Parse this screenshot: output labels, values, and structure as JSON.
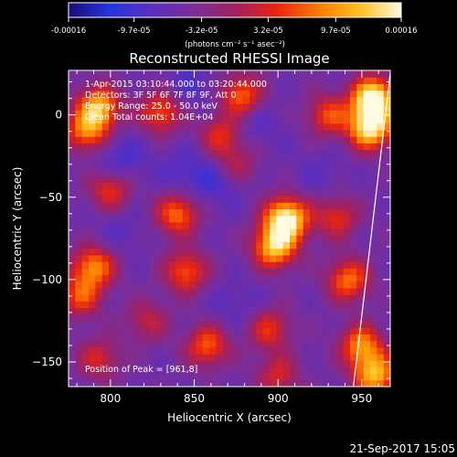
{
  "title": "Reconstructed RHESSI Image",
  "colorbar": {
    "tick_labels": [
      "-0.00016",
      "-9.7e-05",
      "-3.2e-05",
      "3.2e-05",
      "9.7e-05",
      "0.00016"
    ],
    "tick_values": [
      -0.00016,
      -9.7e-05,
      -3.2e-05,
      3.2e-05,
      9.7e-05,
      0.00016
    ],
    "range": [
      -0.00016,
      0.00016
    ],
    "units_label": "(photons cm⁻² s⁻¹ asec⁻²)",
    "colors": [
      "#1a0a78",
      "#2436e0",
      "#5a2ec0",
      "#7a2e9a",
      "#a22060",
      "#e82410",
      "#ff7a00",
      "#ffc020",
      "#fffbe0"
    ]
  },
  "annotations": {
    "time_range": "1-Apr-2015 03:10:44.000 to 03:20:44.000",
    "detectors": "Detectors: 3F 5F 6F 7F 8F 9F, Att 0",
    "energy": "Energy Range: 25.0 - 50.0 keV",
    "clean": "Clean    Total counts: 1.04E+04",
    "peak": "Position of Peak = [961,8]"
  },
  "footer": {
    "date": "21-Sep-2017 15:05"
  },
  "chart_data": {
    "type": "heatmap",
    "title": "Reconstructed RHESSI Image",
    "xlabel": "Heliocentric X (arcsec)",
    "ylabel": "Heliocentric Y (arcsec)",
    "xlim": [
      775,
      967
    ],
    "ylim": [
      -165,
      27
    ],
    "x_ticks": [
      800,
      850,
      900,
      950
    ],
    "y_ticks": [
      0,
      -50,
      -100,
      -150
    ],
    "x_tick_labels": [
      "800",
      "850",
      "900",
      "950"
    ],
    "y_tick_labels": [
      "0",
      "−50",
      "−100",
      "−150"
    ],
    "peak_position": [
      961,
      8
    ],
    "total_counts": 10400,
    "energy_range_kev": [
      25.0,
      50.0
    ],
    "grid": false,
    "limb_line": [
      [
        945,
        -165
      ],
      [
        967,
        25
      ]
    ],
    "hot_spots": [
      {
        "x": 957,
        "y": 10,
        "intensity": 1.0
      },
      {
        "x": 955,
        "y": -8,
        "intensity": 0.85
      },
      {
        "x": 905,
        "y": -63,
        "intensity": 0.95
      },
      {
        "x": 898,
        "y": -80,
        "intensity": 0.75
      },
      {
        "x": 793,
        "y": 5,
        "intensity": 0.7
      },
      {
        "x": 786,
        "y": -10,
        "intensity": 0.55
      },
      {
        "x": 830,
        "y": 2,
        "intensity": 0.5
      },
      {
        "x": 878,
        "y": 12,
        "intensity": 0.55
      },
      {
        "x": 866,
        "y": -12,
        "intensity": 0.4
      },
      {
        "x": 930,
        "y": 0,
        "intensity": 0.45
      },
      {
        "x": 800,
        "y": -45,
        "intensity": 0.45
      },
      {
        "x": 840,
        "y": -60,
        "intensity": 0.55
      },
      {
        "x": 845,
        "y": -95,
        "intensity": 0.5
      },
      {
        "x": 790,
        "y": -92,
        "intensity": 0.6
      },
      {
        "x": 782,
        "y": -110,
        "intensity": 0.45
      },
      {
        "x": 935,
        "y": -62,
        "intensity": 0.4
      },
      {
        "x": 942,
        "y": -100,
        "intensity": 0.55
      },
      {
        "x": 858,
        "y": -140,
        "intensity": 0.5
      },
      {
        "x": 895,
        "y": -130,
        "intensity": 0.4
      },
      {
        "x": 950,
        "y": -140,
        "intensity": 0.6
      },
      {
        "x": 958,
        "y": -158,
        "intensity": 0.7
      },
      {
        "x": 793,
        "y": -148,
        "intensity": 0.35
      },
      {
        "x": 900,
        "y": -158,
        "intensity": 0.35
      },
      {
        "x": 875,
        "y": -30,
        "intensity": 0.3
      },
      {
        "x": 822,
        "y": -125,
        "intensity": 0.3
      }
    ],
    "cold_spots": [
      {
        "x": 805,
        "y": -28,
        "intensity": 0.7
      },
      {
        "x": 865,
        "y": -40,
        "intensity": 0.6
      },
      {
        "x": 845,
        "y": -35,
        "intensity": 0.5
      },
      {
        "x": 885,
        "y": -5,
        "intensity": 0.45
      },
      {
        "x": 848,
        "y": 18,
        "intensity": 0.5
      },
      {
        "x": 875,
        "y": -115,
        "intensity": 0.35
      },
      {
        "x": 805,
        "y": -70,
        "intensity": 0.35
      },
      {
        "x": 925,
        "y": -35,
        "intensity": 0.3
      }
    ]
  }
}
